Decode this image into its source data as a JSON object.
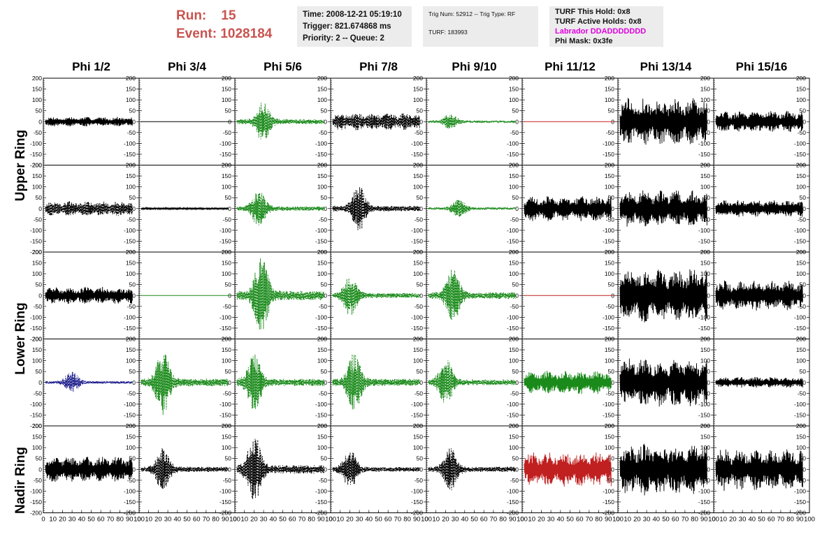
{
  "header": {
    "run_label": "Run:",
    "run_value": "15",
    "event_label": "Event:",
    "event_value": "1028184"
  },
  "info_time": {
    "time": "Time: 2008-12-21 05:19:10",
    "trigger": "Trigger: 821.674868 ms",
    "priority": "Priority: 2 -- Queue: 2"
  },
  "info_trig": {
    "trig": "Trig Num: 52912 -- Trig Type: RF",
    "turf": "TURF: 183993"
  },
  "info_turf": {
    "this_hold": "TURF This Hold: 0x8",
    "active_holds": "TURF Active Holds: 0x8",
    "labrador": "Labrador DDADDDDDDD",
    "phi_mask": "Phi Mask: 0x3fe"
  },
  "columns": [
    "Phi 1/2",
    "Phi 3/4",
    "Phi 5/6",
    "Phi 7/8",
    "Phi 9/10",
    "Phi 11/12",
    "Phi 13/14",
    "Phi 15/16"
  ],
  "row_labels": {
    "upper": "Upper Ring",
    "lower": "Lower Ring",
    "nadir": "Nadir Ring"
  },
  "colors": {
    "header_red": "#c9534f",
    "panel_bg": "#ececec",
    "black": "#000000",
    "green": "#1a8a1a",
    "red": "#c02020",
    "blue": "#1a1a8a",
    "magenta": "#e000e0"
  },
  "chart_data": {
    "type": "line",
    "ylim": [
      -200,
      200
    ],
    "xlim": [
      0,
      100
    ],
    "yticks": [
      "200",
      "150",
      "100",
      "50",
      "0",
      "-50",
      "-100",
      "-150",
      "-200"
    ],
    "xticks": [
      "0",
      "10",
      "20",
      "30",
      "40",
      "50",
      "60",
      "70",
      "80",
      "90",
      "100"
    ],
    "panels": [
      [
        {
          "color": "black",
          "style": "solid",
          "amp": 22,
          "env": "flat",
          "flat": false
        },
        {
          "color": "black",
          "style": "solid",
          "amp": 0,
          "env": "flat",
          "flat": true
        },
        {
          "color": "green",
          "style": "dashed",
          "amp": 95,
          "env": "burst-30",
          "flat": false
        },
        {
          "color": "black",
          "style": "dashed",
          "amp": 40,
          "env": "flat",
          "flat": false
        },
        {
          "color": "green",
          "style": "dashed",
          "amp": 38,
          "env": "burst-25",
          "flat": false
        },
        {
          "color": "red",
          "style": "solid",
          "amp": 0,
          "env": "flat",
          "flat": true
        },
        {
          "color": "black",
          "style": "solid",
          "amp": 110,
          "env": "flat",
          "flat": false
        },
        {
          "color": "black",
          "style": "solid",
          "amp": 50,
          "env": "flat",
          "flat": false
        }
      ],
      [
        {
          "color": "black",
          "style": "dashed",
          "amp": 35,
          "env": "flat",
          "flat": false
        },
        {
          "color": "black",
          "style": "solid",
          "amp": 5,
          "env": "flat",
          "flat": false
        },
        {
          "color": "green",
          "style": "dashed",
          "amp": 85,
          "env": "burst-25",
          "flat": false
        },
        {
          "color": "black",
          "style": "dashed",
          "amp": 110,
          "env": "burst-30",
          "flat": false
        },
        {
          "color": "green",
          "style": "dashed",
          "amp": 45,
          "env": "burst-35",
          "flat": false
        },
        {
          "color": "black",
          "style": "solid",
          "amp": 60,
          "env": "flat",
          "flat": false
        },
        {
          "color": "black",
          "style": "solid",
          "amp": 85,
          "env": "flat",
          "flat": false
        },
        {
          "color": "black",
          "style": "solid",
          "amp": 40,
          "env": "flat",
          "flat": false
        }
      ],
      [
        {
          "color": "black",
          "style": "solid",
          "amp": 40,
          "env": "flat",
          "flat": false
        },
        {
          "color": "green",
          "style": "solid",
          "amp": 0,
          "env": "flat",
          "flat": true
        },
        {
          "color": "green",
          "style": "dashed",
          "amp": 180,
          "env": "burst-28",
          "flat": false
        },
        {
          "color": "green",
          "style": "dashed",
          "amp": 95,
          "env": "burst-20",
          "flat": false
        },
        {
          "color": "green",
          "style": "dashed",
          "amp": 130,
          "env": "burst-28",
          "flat": false
        },
        {
          "color": "red",
          "style": "solid",
          "amp": 0,
          "env": "flat",
          "flat": true
        },
        {
          "color": "black",
          "style": "solid",
          "amp": 130,
          "env": "flat",
          "flat": false
        },
        {
          "color": "black",
          "style": "solid",
          "amp": 70,
          "env": "flat",
          "flat": false
        }
      ],
      [
        {
          "color": "blue",
          "style": "dashed",
          "amp": 50,
          "env": "burst-30",
          "flat": false
        },
        {
          "color": "green",
          "style": "dashed",
          "amp": 150,
          "env": "burst-25",
          "flat": false
        },
        {
          "color": "green",
          "style": "dashed",
          "amp": 140,
          "env": "burst-20",
          "flat": false
        },
        {
          "color": "green",
          "style": "dashed",
          "amp": 140,
          "env": "burst-25",
          "flat": false
        },
        {
          "color": "green",
          "style": "dashed",
          "amp": 110,
          "env": "burst-20",
          "flat": false
        },
        {
          "color": "green",
          "style": "solid",
          "amp": 55,
          "env": "flat",
          "flat": false
        },
        {
          "color": "black",
          "style": "solid",
          "amp": 115,
          "env": "flat",
          "flat": false
        },
        {
          "color": "black",
          "style": "solid",
          "amp": 25,
          "env": "flat",
          "flat": false
        }
      ],
      [
        {
          "color": "black",
          "style": "solid",
          "amp": 60,
          "env": "flat",
          "flat": false
        },
        {
          "color": "black",
          "style": "dashed",
          "amp": 100,
          "env": "burst-25",
          "flat": false
        },
        {
          "color": "black",
          "style": "dashed",
          "amp": 165,
          "env": "burst-20",
          "flat": false
        },
        {
          "color": "black",
          "style": "dashed",
          "amp": 90,
          "env": "burst-20",
          "flat": false
        },
        {
          "color": "black",
          "style": "dashed",
          "amp": 100,
          "env": "burst-25",
          "flat": false
        },
        {
          "color": "red",
          "style": "solid",
          "amp": 80,
          "env": "flat",
          "flat": false
        },
        {
          "color": "black",
          "style": "solid",
          "amp": 120,
          "env": "flat",
          "flat": false
        },
        {
          "color": "black",
          "style": "solid",
          "amp": 100,
          "env": "flat",
          "flat": false
        }
      ]
    ]
  }
}
